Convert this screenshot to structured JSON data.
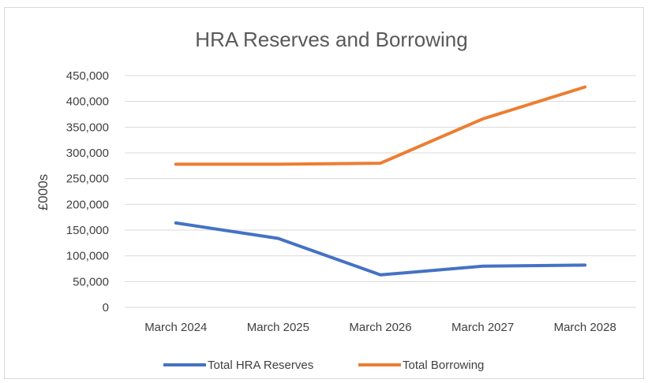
{
  "chart_data": {
    "type": "line",
    "title": "HRA Reserves and Borrowing",
    "xlabel": "",
    "ylabel": "£000s",
    "categories": [
      "March 2024",
      "March 2025",
      "March 2026",
      "March 2027",
      "March 2028"
    ],
    "y_ticks": [
      "0",
      "50,000",
      "100,000",
      "150,000",
      "200,000",
      "250,000",
      "300,000",
      "350,000",
      "400,000",
      "450,000"
    ],
    "ylim": [
      0,
      450000
    ],
    "grid": true,
    "legend_position": "bottom",
    "series": [
      {
        "name": "Total HRA Reserves",
        "color": "#4472c4",
        "values": [
          164000,
          134000,
          63000,
          80000,
          82000
        ]
      },
      {
        "name": "Total Borrowing",
        "color": "#ed7d31",
        "values": [
          278000,
          278000,
          280000,
          366000,
          428000
        ]
      }
    ]
  }
}
